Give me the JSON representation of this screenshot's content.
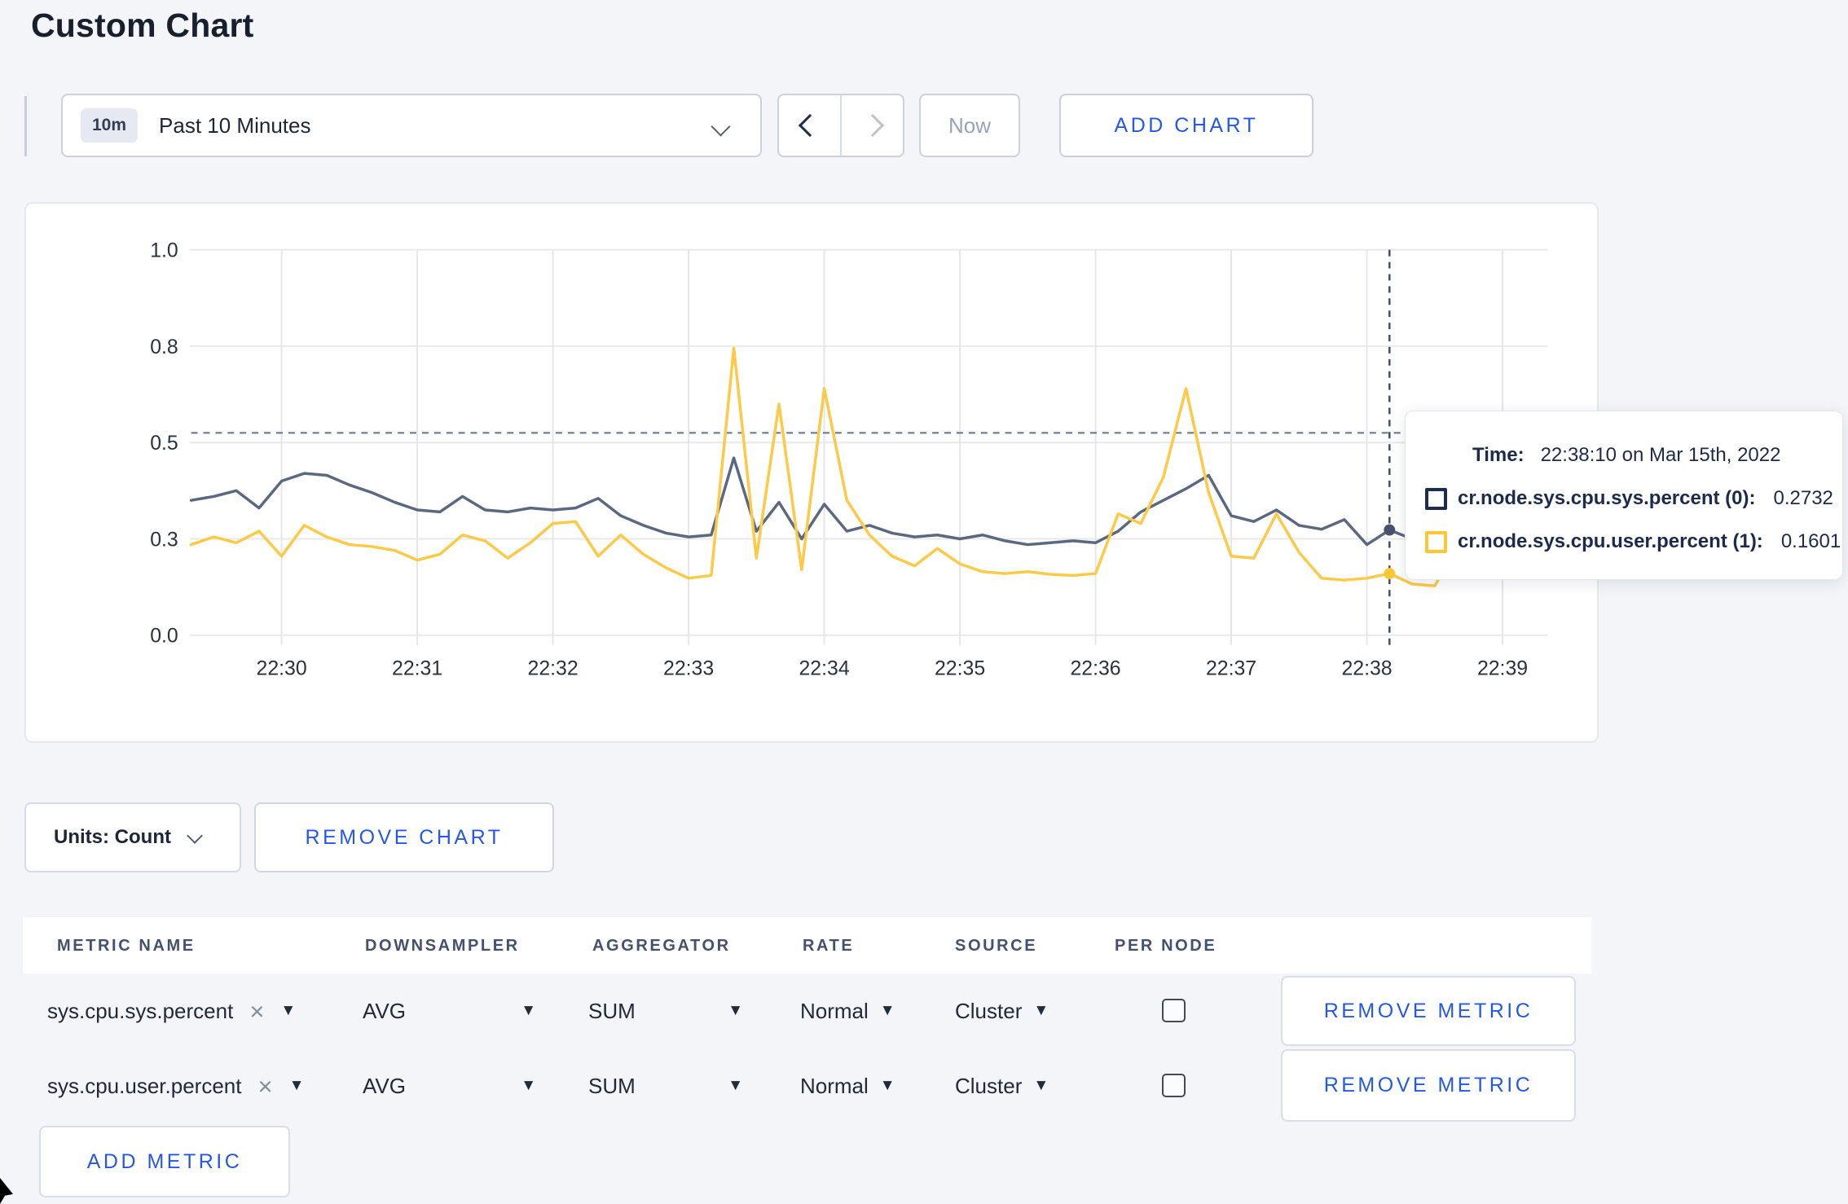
{
  "title": "Custom Chart",
  "controls": {
    "time_window": {
      "badge": "10m",
      "label": "Past 10 Minutes"
    },
    "now_label": "Now",
    "add_chart_label": "ADD CHART"
  },
  "chart_data": {
    "type": "line",
    "title": "",
    "xlabel": "",
    "ylabel": "",
    "ylim": [
      0,
      1
    ],
    "grid": true,
    "y_ticks": [
      {
        "value": 0,
        "label": "0.0"
      },
      {
        "value": 0.25,
        "label": "0.3"
      },
      {
        "value": 0.5,
        "label": "0.5"
      },
      {
        "value": 0.75,
        "label": "0.8"
      },
      {
        "value": 1,
        "label": "1.0"
      }
    ],
    "x_ticks": [
      "22:30",
      "22:31",
      "22:32",
      "22:33",
      "22:34",
      "22:35",
      "22:36",
      "22:37",
      "22:38",
      "22:39"
    ],
    "first_tick_index": 4,
    "tick_step": 6,
    "sample_interval_seconds": 10,
    "crosshair": {
      "index": 53,
      "h_value": 0.525,
      "time": "22:38:10 on Mar 15th, 2022"
    },
    "series": [
      {
        "name": "cr.node.sys.cpu.sys.percent",
        "node": "(0)",
        "color": "#5b6880",
        "dot_color": "#47536d",
        "swatch_color": "#1d2c4e",
        "hover_value": "0.2732",
        "hover_value_num": 0.2732,
        "values": [
          0.35,
          0.36,
          0.375,
          0.33,
          0.4,
          0.42,
          0.415,
          0.39,
          0.37,
          0.345,
          0.325,
          0.32,
          0.36,
          0.325,
          0.32,
          0.33,
          0.325,
          0.33,
          0.355,
          0.31,
          0.285,
          0.265,
          0.255,
          0.26,
          0.46,
          0.27,
          0.345,
          0.25,
          0.34,
          0.27,
          0.285,
          0.265,
          0.255,
          0.26,
          0.25,
          0.26,
          0.245,
          0.235,
          0.24,
          0.245,
          0.24,
          0.27,
          0.32,
          0.35,
          0.38,
          0.415,
          0.31,
          0.295,
          0.325,
          0.285,
          0.275,
          0.3,
          0.235,
          0.2732,
          0.25,
          0.255,
          0.26,
          0.255,
          0.26,
          0.255,
          0.26
        ]
      },
      {
        "name": "cr.node.sys.cpu.user.percent",
        "node": "(1)",
        "color": "#fcca46",
        "dot_color": "#fcc634",
        "swatch_color": "#fcc634",
        "hover_value": "0.1601",
        "hover_value_num": 0.1601,
        "values": [
          0.235,
          0.255,
          0.24,
          0.27,
          0.205,
          0.285,
          0.255,
          0.235,
          0.23,
          0.22,
          0.195,
          0.21,
          0.26,
          0.245,
          0.2,
          0.24,
          0.29,
          0.295,
          0.205,
          0.26,
          0.21,
          0.175,
          0.148,
          0.155,
          0.745,
          0.2,
          0.6,
          0.17,
          0.64,
          0.35,
          0.26,
          0.205,
          0.18,
          0.225,
          0.185,
          0.165,
          0.16,
          0.165,
          0.158,
          0.155,
          0.16,
          0.315,
          0.29,
          0.41,
          0.64,
          0.37,
          0.205,
          0.2,
          0.315,
          0.215,
          0.148,
          0.143,
          0.148,
          0.1601,
          0.133,
          0.128,
          0.23,
          0.185,
          0.17,
          0.24,
          0.265
        ]
      }
    ]
  },
  "tooltip": {
    "time_label": "Time:",
    "time_value": "22:38:10 on Mar 15th, 2022",
    "rows": [
      {
        "label": "cr.node.sys.cpu.sys.percent (0):",
        "value": "0.2732"
      },
      {
        "label": "cr.node.sys.cpu.user.percent (1):",
        "value": "0.1601"
      }
    ]
  },
  "chart_footer": {
    "units_label": "Units: Count",
    "remove_chart_label": "REMOVE CHART"
  },
  "metrics_table": {
    "headers": [
      "METRIC NAME",
      "DOWNSAMPLER",
      "AGGREGATOR",
      "RATE",
      "SOURCE",
      "PER NODE"
    ],
    "rows": [
      {
        "name": "sys.cpu.sys.percent",
        "downsampler": "AVG",
        "aggregator": "SUM",
        "rate": "Normal",
        "source": "Cluster",
        "per_node_checked": false,
        "remove_label": "REMOVE METRIC"
      },
      {
        "name": "sys.cpu.user.percent",
        "downsampler": "AVG",
        "aggregator": "SUM",
        "rate": "Normal",
        "source": "Cluster",
        "per_node_checked": false,
        "remove_label": "REMOVE METRIC"
      }
    ],
    "add_metric_label": "ADD METRIC"
  }
}
